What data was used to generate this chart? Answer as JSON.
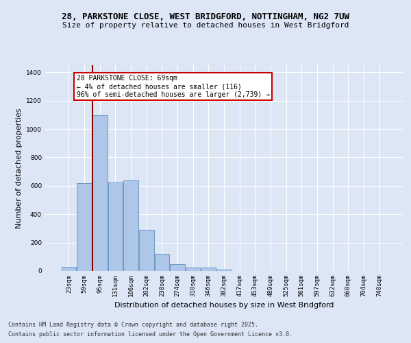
{
  "title_line1": "28, PARKSTONE CLOSE, WEST BRIDGFORD, NOTTINGHAM, NG2 7UW",
  "title_line2": "Size of property relative to detached houses in West Bridgford",
  "xlabel": "Distribution of detached houses by size in West Bridgford",
  "ylabel": "Number of detached properties",
  "categories": [
    "23sqm",
    "59sqm",
    "95sqm",
    "131sqm",
    "166sqm",
    "202sqm",
    "238sqm",
    "274sqm",
    "310sqm",
    "346sqm",
    "382sqm",
    "417sqm",
    "453sqm",
    "489sqm",
    "525sqm",
    "561sqm",
    "597sqm",
    "632sqm",
    "668sqm",
    "704sqm",
    "740sqm"
  ],
  "values": [
    30,
    620,
    1095,
    625,
    640,
    290,
    120,
    50,
    25,
    25,
    10,
    0,
    0,
    0,
    0,
    0,
    0,
    0,
    0,
    0,
    0
  ],
  "bar_color": "#aec6e8",
  "bar_edge_color": "#5a8fc0",
  "vline_color": "#8b0000",
  "annotation_text": "28 PARKSTONE CLOSE: 69sqm\n← 4% of detached houses are smaller (116)\n96% of semi-detached houses are larger (2,739) →",
  "annotation_box_color": "#ffffff",
  "annotation_box_edge": "#cc0000",
  "ylim": [
    0,
    1450
  ],
  "yticks": [
    0,
    200,
    400,
    600,
    800,
    1000,
    1200,
    1400
  ],
  "background_color": "#dce6f5",
  "plot_background": "#dce6f5",
  "grid_color": "#ffffff",
  "footer_line1": "Contains HM Land Registry data © Crown copyright and database right 2025.",
  "footer_line2": "Contains public sector information licensed under the Open Government Licence v3.0.",
  "title_fontsize": 9,
  "subtitle_fontsize": 8,
  "axis_label_fontsize": 8,
  "tick_fontsize": 6.5,
  "annotation_fontsize": 7,
  "footer_fontsize": 6
}
